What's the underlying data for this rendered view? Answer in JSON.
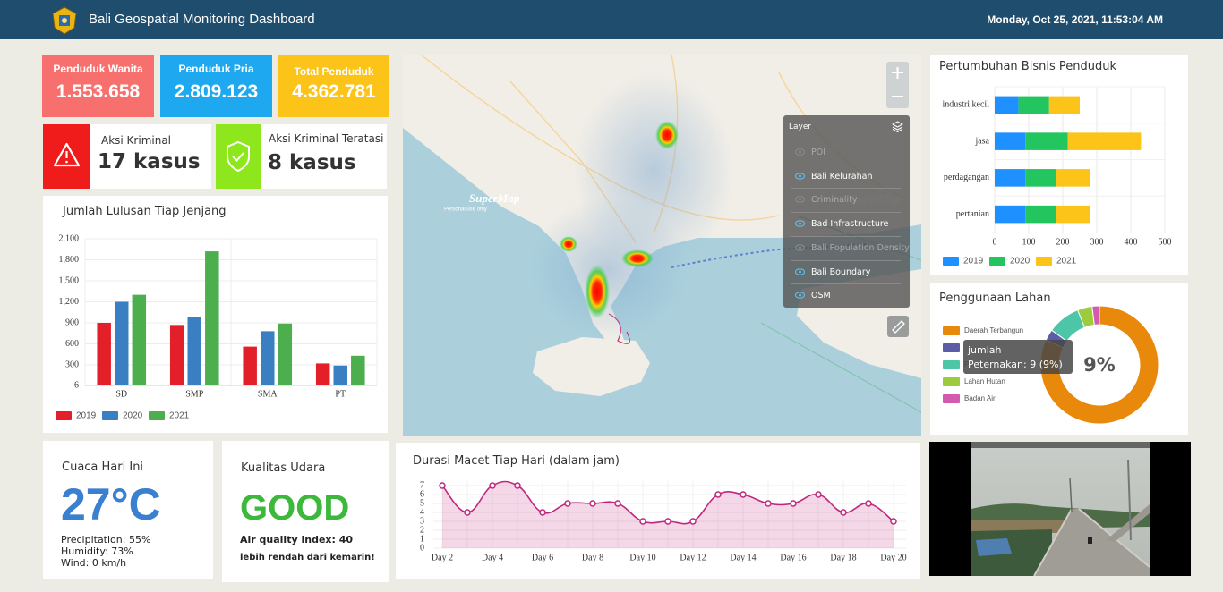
{
  "header": {
    "title": "Bali Geospatial Monitoring Dashboard",
    "datetime": "Monday, Oct 25, 2021, 11:53:04 AM"
  },
  "stats": [
    {
      "label": "Penduduk Wanita",
      "value": "1.553.658",
      "color": "#f7706e"
    },
    {
      "label": "Penduduk Pria",
      "value": "2.809.123",
      "color": "#1ea8f0"
    },
    {
      "label": "Total Penduduk",
      "value": "4.362.781",
      "color": "#fcc419"
    }
  ],
  "crime": [
    {
      "label": "Aksi Kriminal",
      "value": "17 kasus",
      "color": "#f01c1c"
    },
    {
      "label": "Aksi Kriminal Teratasi",
      "value": "8 kasus",
      "color": "#8ee61d"
    }
  ],
  "weather": {
    "title": "Cuaca Hari Ini",
    "temperature": "27°C",
    "lines": [
      "Precipitation: 55%",
      "Humidity: 73%",
      "Wind: 0 km/h"
    ]
  },
  "air": {
    "title": "Kualitas Udara",
    "status": "GOOD",
    "index": "Air quality index: 40",
    "note": "lebih rendah dari kemarin!"
  },
  "map": {
    "watermark": "SuperMap",
    "watermark_note": "Personal use only",
    "layer_title": "Layer",
    "layers": [
      {
        "name": "POI",
        "visible": false
      },
      {
        "name": "Bali Kelurahan",
        "visible": true
      },
      {
        "name": "Criminality",
        "visible": false
      },
      {
        "name": "Bad Infrastructure",
        "visible": true
      },
      {
        "name": "Bali Population Density",
        "visible": false
      },
      {
        "name": "Bali Boundary",
        "visible": true
      },
      {
        "name": "OSM",
        "visible": true
      }
    ]
  },
  "chart_data": [
    {
      "type": "bar",
      "title": "Jumlah Lulusan Tiap Jenjang",
      "categories": [
        "SD",
        "SMP",
        "SMA",
        "PT"
      ],
      "series": [
        {
          "name": "2019",
          "color": "#e3202a",
          "values": [
            900,
            870,
            560,
            320
          ]
        },
        {
          "name": "2020",
          "color": "#3a7fc1",
          "values": [
            1200,
            980,
            780,
            290
          ]
        },
        {
          "name": "2021",
          "color": "#4cae4c",
          "values": [
            1300,
            1920,
            890,
            430
          ]
        }
      ],
      "ylim": [
        6,
        2100
      ],
      "yticks": [
        6,
        300,
        600,
        900,
        {
          "value": 1200,
          "label": "1,200"
        },
        {
          "value": 1500,
          "label": "1,500"
        },
        {
          "value": 1800,
          "label": "1,800"
        },
        {
          "value": 2100,
          "label": "2,100"
        }
      ],
      "grid": true
    },
    {
      "type": "bar",
      "horizontal": true,
      "stacked": true,
      "title": "Pertumbuhan Bisnis Penduduk",
      "categories": [
        "industri kecil",
        "jasa",
        "perdagangan",
        "pertanian"
      ],
      "series": [
        {
          "name": "2019",
          "color": "#1e90ff",
          "values": [
            70,
            90,
            90,
            90
          ]
        },
        {
          "name": "2020",
          "color": "#22c55e",
          "values": [
            90,
            125,
            90,
            90
          ]
        },
        {
          "name": "2021",
          "color": "#fcc419",
          "values": [
            90,
            215,
            100,
            100
          ]
        }
      ],
      "xlim": [
        0,
        500
      ],
      "xticks": [
        0,
        100,
        200,
        300,
        400,
        500
      ],
      "grid": true
    },
    {
      "type": "pie",
      "donut": true,
      "title": "Penggunaan Lahan",
      "categories": [
        "Daerah Terbangun",
        null,
        "Peternakan",
        "Lahan Hutan",
        "Badan Air"
      ],
      "values": [
        82,
        3,
        9,
        4,
        2
      ],
      "colors": [
        "#e8890c",
        "#5b5ea6",
        "#4dc6a8",
        "#9ccc3d",
        "#d45ab0"
      ],
      "center_label": "9%",
      "tooltip": {
        "title": "jumlah",
        "text": "Peternakan: 9 (9%)"
      }
    },
    {
      "type": "line",
      "area": true,
      "title": "Durasi Macet Tiap Hari (dalam jam)",
      "categories": [
        "Day 2",
        null,
        "Day 4",
        null,
        "Day 6",
        null,
        "Day 8",
        null,
        "Day 10",
        null,
        "Day 12",
        null,
        "Day 14",
        null,
        "Day 16",
        null,
        "Day 18",
        null,
        "Day 20"
      ],
      "values": [
        7,
        4,
        7,
        7,
        4,
        5,
        5,
        5,
        3,
        3,
        3,
        6,
        6,
        5,
        5,
        6,
        4,
        5,
        3
      ],
      "color": "#c0277d",
      "ylim": [
        0,
        7
      ],
      "yticks": [
        0,
        1,
        2,
        3,
        4,
        5,
        6,
        7
      ],
      "grid": true
    }
  ]
}
